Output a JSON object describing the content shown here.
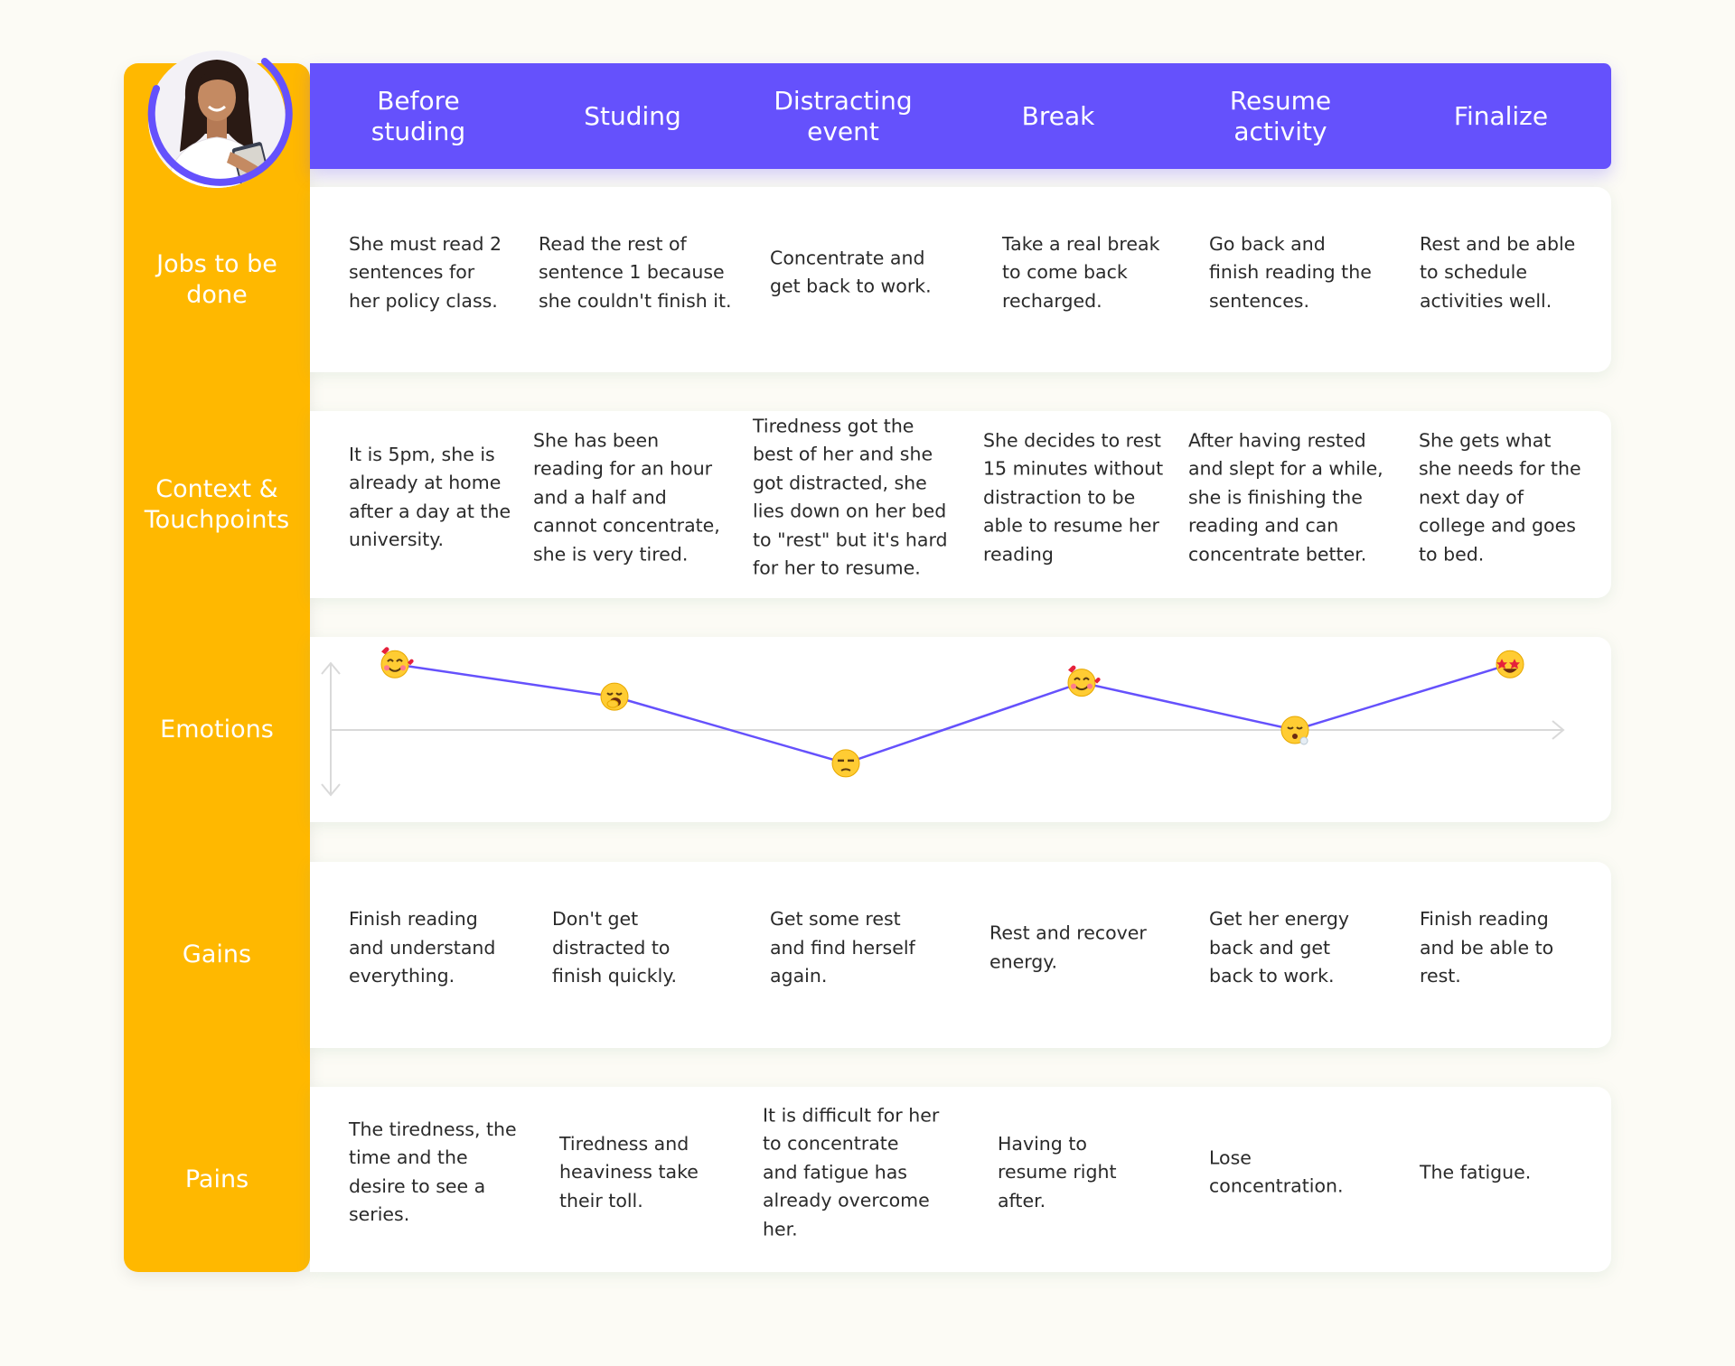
{
  "stages": [
    "Before\nstuding",
    "Studing",
    "Distracting\nevent",
    "Break",
    "Resume\nactivity",
    "Finalize"
  ],
  "rows": [
    {
      "label": "Jobs to be\ndone",
      "cells": [
        "She must read 2\nsentences for\nher policy class.",
        "Read the rest of\nsentence 1 because\nshe couldn't finish it.",
        "Concentrate and\nget back to work.",
        "Take a real break\nto come back\nrecharged.",
        "Go back and\nfinish reading the\nsentences.",
        "Rest and be able\nto schedule\nactivities well."
      ]
    },
    {
      "label": "Context &\nTouchpoints",
      "cells": [
        "It is 5pm, she is\nalready at home\nafter a day at the\nuniversity.",
        "She has been\nreading for an hour\nand a half and\ncannot concentrate,\nshe is very tired.",
        "Tiredness got the\nbest of her and she\ngot distracted, she\nlies down on her bed\nto \"rest\" but it's hard\nfor her to resume.",
        "She decides to rest\n15 minutes without\ndistraction to be\nable to resume her\nreading",
        "After having rested\nand slept for a while,\nshe is finishing the\nreading and can\nconcentrate better.",
        "She gets what\nshe needs for the\nnext day of\ncollege and goes\nto bed."
      ]
    },
    {
      "label": "Emotions",
      "cells": []
    },
    {
      "label": "Gains",
      "cells": [
        "Finish reading\nand understand\neverything.",
        "Don't get\ndistracted to\nfinish quickly.",
        "Get some rest\nand find herself\nagain.",
        "Rest and recover\nenergy.",
        "Get her energy\nback and get\nback to work.",
        "Finish reading\nand be able to\nrest."
      ]
    },
    {
      "label": "Pains",
      "cells": [
        "The tiredness, the\ntime and the\ndesire to see a\nseries.",
        "Tiredness and\nheaviness take\ntheir toll.",
        "It is difficult for her\nto concentrate\nand fatigue has\nalready overcome\nher.",
        "Having to\nresume right\nafter.",
        "Lose\nconcentration.",
        "The fatigue."
      ]
    }
  ],
  "emotions": {
    "levels": [
      0.75,
      0.38,
      -0.38,
      0.54,
      0.0,
      0.75
    ],
    "faces": [
      "smiling-face-with-hearts-icon",
      "yawning-face-icon",
      "unamused-face-icon",
      "smiling-face-with-hearts-icon",
      "face-exhaling-icon",
      "star-struck-face-icon"
    ]
  },
  "colors": {
    "sidebar": "#ffb800",
    "header": "#6551fc",
    "line": "#6551fc",
    "card": "#ffffff",
    "background": "#fcfbf5"
  }
}
